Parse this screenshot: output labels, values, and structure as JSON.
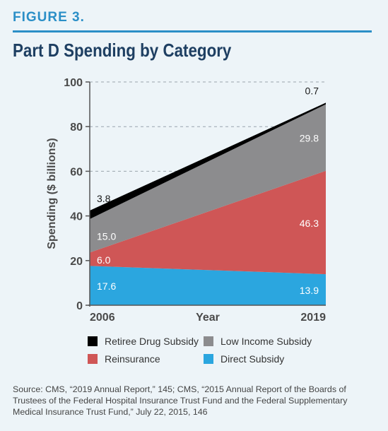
{
  "figure_label": "FIGURE 3.",
  "title": "Part D Spending by Category",
  "source": "Source: CMS, “2019 Annual Report,” 145; CMS, “2015 Annual Report of the Boards of Trustees of the Federal Hospital Insurance Trust Fund and the Federal Supplementary Medical Insurance Trust Fund,” July 22, 2015, 146",
  "chart_data": {
    "type": "area",
    "stacked": true,
    "title": "Part D Spending by Category",
    "xlabel": "Year",
    "ylabel": "Spending ($ billions)",
    "x": [
      "2006",
      "2019"
    ],
    "ylim": [
      0,
      100
    ],
    "yticks": [
      0,
      20,
      40,
      60,
      80,
      100
    ],
    "grid": "horizontal dashed",
    "legend_position": "bottom",
    "series": [
      {
        "name": "Direct Subsidy",
        "values": [
          17.6,
          13.9
        ],
        "labels": [
          "17.6",
          "13.9"
        ],
        "color": "#2ba6df"
      },
      {
        "name": "Reinsurance",
        "values": [
          6.0,
          46.3
        ],
        "labels": [
          "6.0",
          "46.3"
        ],
        "color": "#cf5656"
      },
      {
        "name": "Low Income Subsidy",
        "values": [
          15.0,
          29.8
        ],
        "labels": [
          "15.0",
          "29.8"
        ],
        "color": "#8c8c8e"
      },
      {
        "name": "Retiree Drug Subsidy",
        "values": [
          3.8,
          0.7
        ],
        "labels": [
          "3.8",
          "0.7"
        ],
        "color": "#000000"
      }
    ],
    "legend_order": [
      "Retiree Drug Subsidy",
      "Low Income Subsidy",
      "Reinsurance",
      "Direct Subsidy"
    ]
  }
}
